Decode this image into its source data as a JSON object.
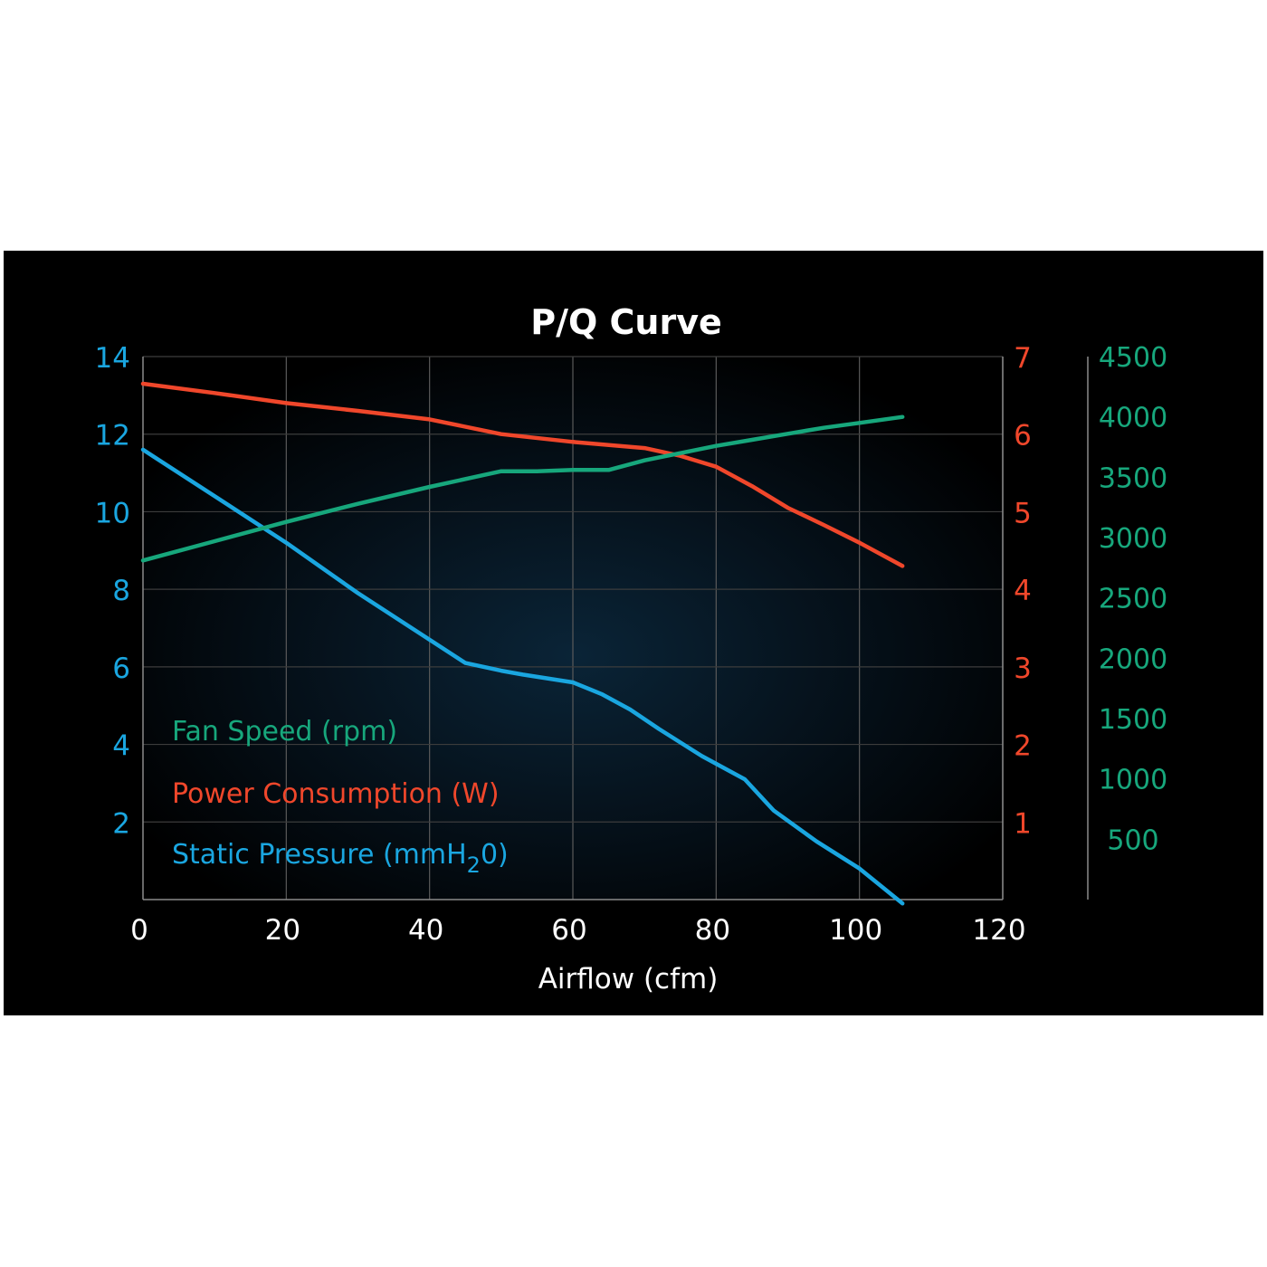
{
  "chart_data": {
    "type": "line",
    "title": "P/Q Curve",
    "xlabel": "Airflow (cfm)",
    "xlim": [
      0,
      120
    ],
    "x_ticks": [
      "0",
      "20",
      "40",
      "60",
      "80",
      "100",
      "120"
    ],
    "grid": true,
    "legend_position": "bottom-left",
    "axes": {
      "left": {
        "color": "#1aa6e0",
        "ylim": [
          0,
          14
        ],
        "ticks": [
          "2",
          "4",
          "6",
          "8",
          "10",
          "12",
          "14"
        ]
      },
      "right_inner": {
        "color": "#f0472b",
        "ylim": [
          0,
          7
        ],
        "ticks": [
          "1",
          "2",
          "3",
          "4",
          "5",
          "6",
          "7"
        ]
      },
      "right_outer": {
        "color": "#17a77c",
        "ylim": [
          0,
          4500
        ],
        "ticks": [
          "500",
          "1000",
          "1500",
          "2000",
          "2500",
          "3000",
          "3500",
          "4000",
          "4500"
        ]
      }
    },
    "legend": [
      {
        "text": "Fan Speed (rpm)",
        "color": "#17a77c"
      },
      {
        "text": "Power Consumption (W)",
        "color": "#f0472b"
      },
      {
        "text_main": "Static Pressure (mmH",
        "text_sub": "2",
        "text_end": "0)",
        "color": "#1aa6e0"
      }
    ],
    "series": [
      {
        "key": "pressure",
        "axis": "left",
        "color": "#1aa6e0",
        "x": [
          0,
          10,
          20,
          30,
          40,
          45,
          50,
          53,
          60,
          64,
          68,
          72,
          78,
          84,
          88,
          94,
          100,
          106
        ],
        "y": [
          11.6,
          10.4,
          9.2,
          7.9,
          6.7,
          6.1,
          5.9,
          5.8,
          5.6,
          5.3,
          4.9,
          4.4,
          3.7,
          3.1,
          2.3,
          1.5,
          0.8,
          -0.1
        ]
      },
      {
        "key": "power",
        "axis": "right_inner",
        "color": "#f0472b",
        "x": [
          0,
          10,
          20,
          30,
          40,
          50,
          60,
          70,
          75,
          80,
          85,
          90,
          95,
          100,
          106
        ],
        "y": [
          6.65,
          6.53,
          6.4,
          6.3,
          6.19,
          6.0,
          5.9,
          5.82,
          5.72,
          5.58,
          5.33,
          5.05,
          4.83,
          4.6,
          4.3
        ]
      },
      {
        "key": "speed",
        "axis": "right_outer",
        "color": "#17a77c",
        "x": [
          0,
          10,
          20,
          30,
          40,
          50,
          55,
          60,
          65,
          70,
          75,
          80,
          85,
          90,
          95,
          100,
          106
        ],
        "y": [
          2810,
          2970,
          3130,
          3280,
          3420,
          3550,
          3550,
          3560,
          3560,
          3640,
          3700,
          3760,
          3810,
          3860,
          3910,
          3950,
          4000
        ]
      }
    ]
  }
}
